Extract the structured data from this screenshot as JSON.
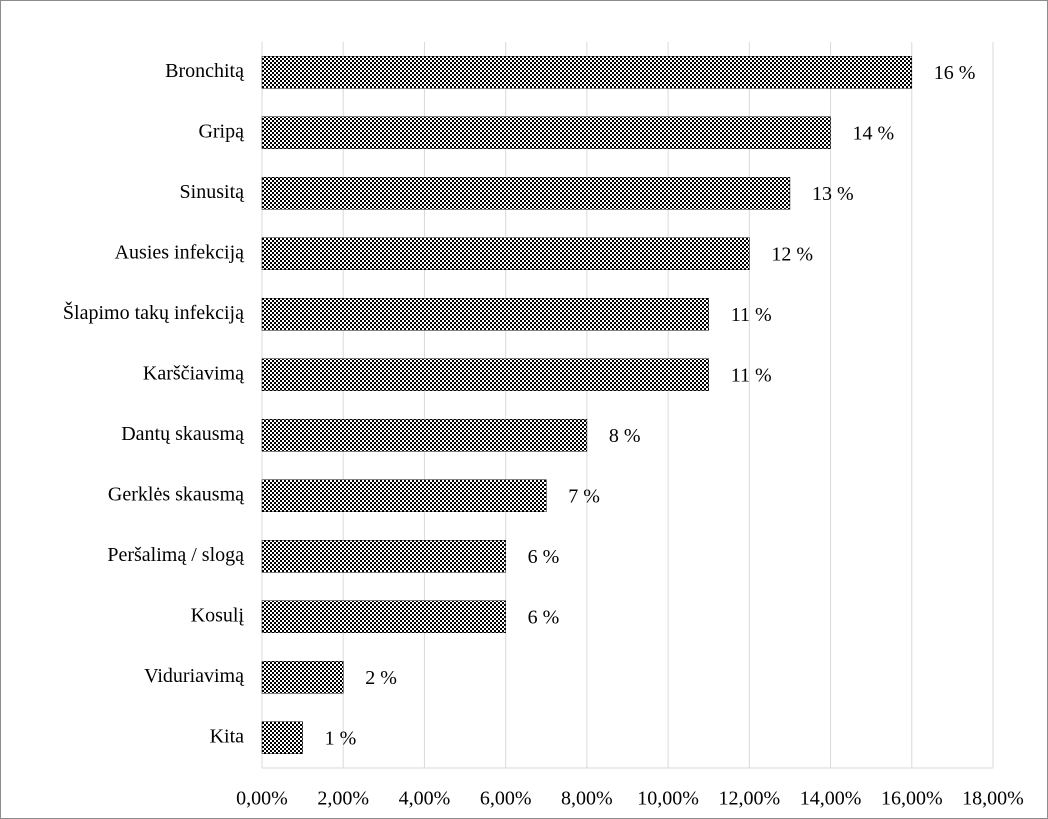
{
  "chart_data": {
    "type": "bar",
    "orientation": "horizontal",
    "categories": [
      "Bronchitą",
      "Gripą",
      "Sinusitą",
      "Ausies infekciją",
      "Šlapimo takų infekciją",
      "Karščiavimą",
      "Dantų skausmą",
      "Gerklės skausmą",
      "Peršalimą / slogą",
      "Kosulį",
      "Viduriavimą",
      "Kita"
    ],
    "values": [
      16,
      14,
      13,
      12,
      11,
      11,
      8,
      7,
      6,
      6,
      2,
      1
    ],
    "value_labels": [
      "16 %",
      "14 %",
      "13 %",
      "12 %",
      "11 %",
      "11 %",
      "8 %",
      "7 %",
      "6 %",
      "6 %",
      "2 %",
      "1 %"
    ],
    "color": "#000000",
    "xlim": [
      0,
      18
    ],
    "xticks": [
      {
        "value": 0,
        "label": "0,00%"
      },
      {
        "value": 2,
        "label": "2,00%"
      },
      {
        "value": 4,
        "label": "4,00%"
      },
      {
        "value": 6,
        "label": "6,00%"
      },
      {
        "value": 8,
        "label": "8,00%"
      },
      {
        "value": 10,
        "label": "10,00%"
      },
      {
        "value": 12,
        "label": "12,00%"
      },
      {
        "value": 14,
        "label": "14,00%"
      },
      {
        "value": 16,
        "label": "16,00%"
      },
      {
        "value": 18,
        "label": "18,00%"
      }
    ],
    "grid": true
  }
}
